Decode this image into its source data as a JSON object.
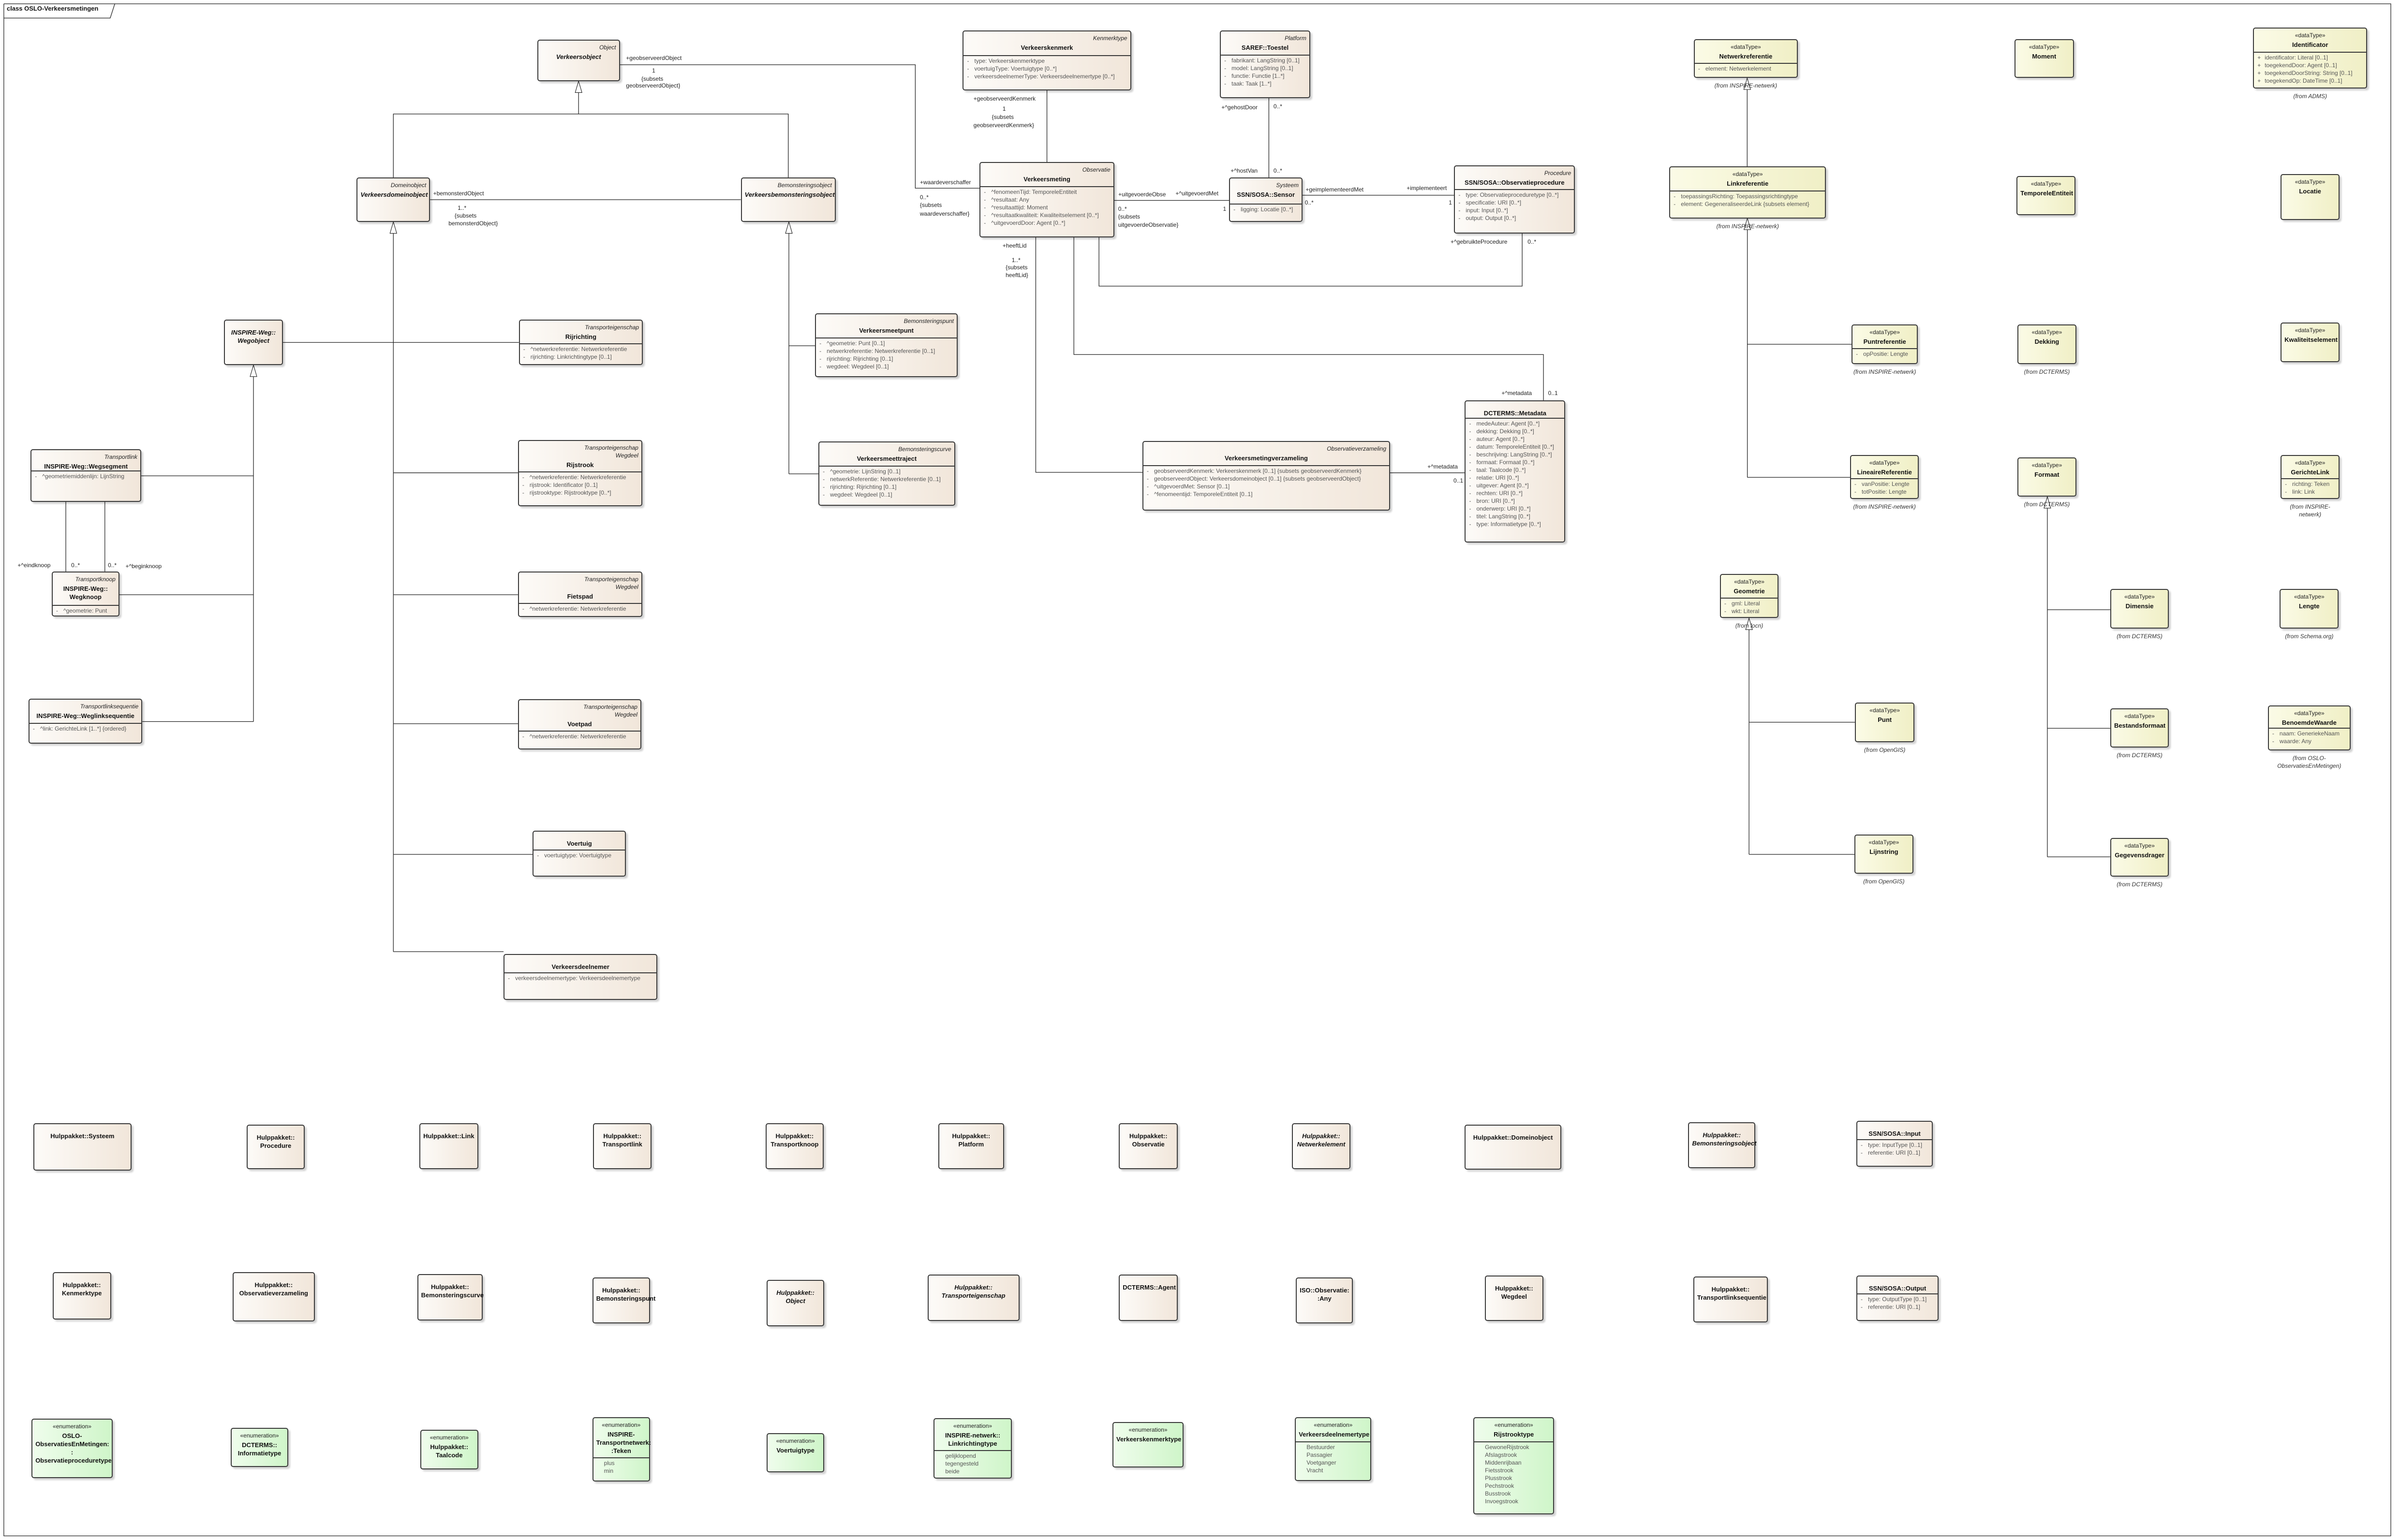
{
  "diagram": {
    "title": "class OSLO-Verkeersmetingen"
  },
  "colors": {
    "class_fill_start": "#fdfbf8",
    "class_fill_end": "#f1e6da",
    "datatype_fill_start": "#fbfbe6",
    "datatype_fill_end": "#f0efc6",
    "enumeration_fill_start": "#effdec",
    "enumeration_fill_end": "#cff5c9",
    "line": "#222222"
  },
  "classes": [
    {
      "kind": "class",
      "tags": [
        "Object"
      ],
      "name": "Verkeersobject",
      "abstract": true,
      "attributes": []
    },
    {
      "kind": "class",
      "tags": [
        "Domeinobject"
      ],
      "name": "Verkeersdomeinobject",
      "abstract": true,
      "attributes": []
    },
    {
      "kind": "class",
      "tags": [
        "Bemonsteringsobject"
      ],
      "name": "Verkeersbemonsteringsobject",
      "abstract": true,
      "attributes": []
    },
    {
      "kind": "class",
      "tags": [
        "Kenmerktype"
      ],
      "name": "Verkeerskenmerk",
      "attributes": [
        {
          "vis": "-",
          "text": "type: Verkeerskenmerktype"
        },
        {
          "vis": "-",
          "text": "voertuigType: Voertuigtype [0..*]"
        },
        {
          "vis": "-",
          "text": "verkeersdeelnemerType: Verkeersdeelnemertype [0..*]"
        }
      ]
    },
    {
      "kind": "class",
      "tags": [
        "Platform"
      ],
      "name": "SAREF::Toestel",
      "attributes": [
        {
          "vis": "-",
          "text": "fabrikant: LangString [0..1]"
        },
        {
          "vis": "-",
          "text": "model: LangString [0..1]"
        },
        {
          "vis": "-",
          "text": "functie: Functie [1..*]"
        },
        {
          "vis": "-",
          "text": "taak: Taak [1..*]"
        }
      ]
    },
    {
      "kind": "class",
      "tags": [
        "Observatie"
      ],
      "name": "Verkeersmeting",
      "attributes": [
        {
          "vis": "-",
          "text": "^fenomeenTijd: TemporeleEntiteit"
        },
        {
          "vis": "-",
          "text": "^resultaat: Any"
        },
        {
          "vis": "-",
          "text": "^resultaattijd: Moment"
        },
        {
          "vis": "-",
          "text": "^resultaatkwaliteit: Kwaliteitselement [0..*]"
        },
        {
          "vis": "-",
          "text": "^uitgevoerdDoor: Agent [0..*]"
        }
      ]
    },
    {
      "kind": "class",
      "tags": [
        "Systeem"
      ],
      "name": "SSN/SOSA::Sensor",
      "attributes": [
        {
          "vis": "-",
          "text": "ligging: Locatie [0..*]"
        }
      ]
    },
    {
      "kind": "class",
      "tags": [
        "Procedure"
      ],
      "name": "SSN/SOSA::Observatieprocedure",
      "attributes": [
        {
          "vis": "-",
          "text": "type: Observatieproceduretype [0..*]"
        },
        {
          "vis": "-",
          "text": "specificatie: URI [0..*]"
        },
        {
          "vis": "-",
          "text": "input: Input [0..*]"
        },
        {
          "vis": "-",
          "text": "output: Output [0..*]"
        }
      ]
    },
    {
      "kind": "class",
      "tags": [],
      "name": "DCTERMS::Metadata",
      "attributes": [
        {
          "vis": "-",
          "text": "medeAuteur: Agent [0..*]"
        },
        {
          "vis": "-",
          "text": "dekking: Dekking [0..*]"
        },
        {
          "vis": "-",
          "text": "auteur: Agent [0..*]"
        },
        {
          "vis": "-",
          "text": "datum: TemporeleEntiteit [0..*]"
        },
        {
          "vis": "-",
          "text": "beschrijving: LangString [0..*]"
        },
        {
          "vis": "-",
          "text": "formaat: Formaat [0..*]"
        },
        {
          "vis": "-",
          "text": "taal: Taalcode [0..*]"
        },
        {
          "vis": "-",
          "text": "relatie: URI [0..*]"
        },
        {
          "vis": "-",
          "text": "uitgever: Agent [0..*]"
        },
        {
          "vis": "-",
          "text": "rechten: URI [0..*]"
        },
        {
          "vis": "-",
          "text": "bron: URI [0..*]"
        },
        {
          "vis": "-",
          "text": "onderwerp: URI [0..*]"
        },
        {
          "vis": "-",
          "text": "titel: LangString [0..*]"
        },
        {
          "vis": "-",
          "text": "type: Informatietype [0..*]"
        }
      ]
    },
    {
      "kind": "class",
      "tags": [
        "Observatieverzameling"
      ],
      "name": "Verkeersmetingverzameling",
      "attributes": [
        {
          "vis": "-",
          "text": "geobserveerdKenmerk: Verkeerskenmerk [0..1] {subsets geobserveerdKenmerk}"
        },
        {
          "vis": "-",
          "text": "geobserveerdObject: Verkeersdomeinobject [0..1] {subsets geobserveerdObject}"
        },
        {
          "vis": "-",
          "text": "^uitgevoerdMet: Sensor [0..1]"
        },
        {
          "vis": "-",
          "text": "^fenomeentijd: TemporeleEntiteit [0..1]"
        }
      ]
    },
    {
      "kind": "class",
      "tags": [],
      "name": "INSPIRE-Weg::\nWegobject",
      "abstract": true,
      "attributes": []
    },
    {
      "kind": "class",
      "tags": [
        "Transporteigenschap"
      ],
      "name": "Rijrichting",
      "attributes": [
        {
          "vis": "-",
          "text": "^netwerkreferentie: Netwerkreferentie"
        },
        {
          "vis": "-",
          "text": "rijrichting: Linkrichtingtype [0..1]"
        }
      ]
    },
    {
      "kind": "class",
      "tags": [
        "Transporteigenschap",
        "Wegdeel"
      ],
      "name": "Rijstrook",
      "attributes": [
        {
          "vis": "-",
          "text": "^netwerkreferentie: Netwerkreferentie"
        },
        {
          "vis": "-",
          "text": "rijstrook: Identificator [0..1]"
        },
        {
          "vis": "-",
          "text": "rijstrooktype: Rijstrooktype [0..*]"
        }
      ]
    },
    {
      "kind": "class",
      "tags": [
        "Transporteigenschap",
        "Wegdeel"
      ],
      "name": "Fietspad",
      "attributes": [
        {
          "vis": "-",
          "text": "^netwerkreferentie: Netwerkreferentie"
        }
      ]
    },
    {
      "kind": "class",
      "tags": [
        "Transporteigenschap",
        "Wegdeel"
      ],
      "name": "Voetpad",
      "attributes": [
        {
          "vis": "-",
          "text": "^netwerkreferentie: Netwerkreferentie"
        }
      ]
    },
    {
      "kind": "class",
      "tags": [],
      "name": "Voertuig",
      "attributes": [
        {
          "vis": "-",
          "text": "voertuigtype: Voertuigtype"
        }
      ]
    },
    {
      "kind": "class",
      "tags": [],
      "name": "Verkeersdeelnemer",
      "attributes": [
        {
          "vis": "-",
          "text": "verkeersdeelnemertype: Verkeersdeelnemertype"
        }
      ]
    },
    {
      "kind": "class",
      "tags": [
        "Transportlink"
      ],
      "name": "INSPIRE-Weg::Wegsegment",
      "attributes": [
        {
          "vis": "-",
          "text": "^geometriemiddenlijn: LijnString"
        }
      ]
    },
    {
      "kind": "class",
      "tags": [
        "Transportknoop"
      ],
      "name": "INSPIRE-Weg::\nWegknoop",
      "attributes": [
        {
          "vis": "-",
          "text": "^geometrie: Punt"
        }
      ]
    },
    {
      "kind": "class",
      "tags": [
        "Transportlinksequentie"
      ],
      "name": "INSPIRE-Weg::Weglinksequentie",
      "attributes": [
        {
          "vis": "-",
          "text": "^link: GerichteLink [1..*] {ordered}"
        }
      ]
    },
    {
      "kind": "class",
      "tags": [
        "Bemonsteringspunt"
      ],
      "name": "Verkeersmeetpunt",
      "attributes": [
        {
          "vis": "-",
          "text": "^geometrie: Punt [0..1]"
        },
        {
          "vis": "-",
          "text": "netwerkreferentie: Netwerkreferentie [0..1]"
        },
        {
          "vis": "-",
          "text": "rijrichting: Rijrichting [0..1]"
        },
        {
          "vis": "-",
          "text": "wegdeel: Wegdeel [0..1]"
        }
      ]
    },
    {
      "kind": "class",
      "tags": [
        "Bemonsteringscurve"
      ],
      "name": "Verkeersmeettraject",
      "attributes": [
        {
          "vis": "-",
          "text": "^geometrie: LijnString [0..1]"
        },
        {
          "vis": "-",
          "text": "netwerkReferentie: Netwerkreferentie [0..1]"
        },
        {
          "vis": "-",
          "text": "rijrichting: Rijrichting [0..1]"
        },
        {
          "vis": "-",
          "text": "wegdeel: Wegdeel [0..1]"
        }
      ]
    },
    {
      "kind": "dataType",
      "stereotype": "«dataType»",
      "name": "Netwerkreferentie",
      "attributes": [
        {
          "vis": "-",
          "text": "element: Netwerkelement"
        }
      ],
      "from": "(from INSPIRE-netwerk)"
    },
    {
      "kind": "dataType",
      "stereotype": "«dataType»",
      "name": "Moment",
      "attributes": []
    },
    {
      "kind": "dataType",
      "stereotype": "«dataType»",
      "name": "Identificator",
      "attributes": [
        {
          "vis": "+",
          "text": "identificator: Literal [0..1]"
        },
        {
          "vis": "+",
          "text": "toegekendDoor: Agent [0..1]"
        },
        {
          "vis": "+",
          "text": "toegekendDoorString: String [0..1]"
        },
        {
          "vis": "+",
          "text": "toegekendOp: DateTime [0..1]"
        }
      ],
      "from": "(from ADMS)"
    },
    {
      "kind": "dataType",
      "stereotype": "«dataType»",
      "name": "Linkreferentie",
      "attributes": [
        {
          "vis": "-",
          "text": "toepassingsRichting: Toepassingsrichtingtype"
        },
        {
          "vis": "-",
          "text": "element: GegeneraliseerdeLink {subsets element}"
        }
      ],
      "from": "(from INSPIRE-netwerk)"
    },
    {
      "kind": "dataType",
      "stereotype": "«dataType»",
      "name": "TemporeleEntiteit",
      "attributes": []
    },
    {
      "kind": "dataType",
      "stereotype": "«dataType»",
      "name": "Locatie",
      "attributes": []
    },
    {
      "kind": "dataType",
      "stereotype": "«dataType»",
      "name": "Puntreferentie",
      "attributes": [
        {
          "vis": "-",
          "text": "opPositie: Lengte"
        }
      ],
      "from": "(from INSPIRE-netwerk)"
    },
    {
      "kind": "dataType",
      "stereotype": "«dataType»",
      "name": "Dekking",
      "attributes": [],
      "from": "(from DCTERMS)"
    },
    {
      "kind": "dataType",
      "stereotype": "«dataType»",
      "name": "Kwaliteitselement",
      "attributes": []
    },
    {
      "kind": "dataType",
      "stereotype": "«dataType»",
      "name": "LineaireReferentie",
      "attributes": [
        {
          "vis": "-",
          "text": "vanPositie: Lengte"
        },
        {
          "vis": "-",
          "text": "totPositie: Lengte"
        }
      ],
      "from": "(from INSPIRE-netwerk)"
    },
    {
      "kind": "dataType",
      "stereotype": "«dataType»",
      "name": "Formaat",
      "attributes": [],
      "from": "(from DCTERMS)"
    },
    {
      "kind": "dataType",
      "stereotype": "«dataType»",
      "name": "GerichteLink",
      "attributes": [
        {
          "vis": "-",
          "text": "richting: Teken"
        },
        {
          "vis": "-",
          "text": "link: Link"
        }
      ],
      "from": "(from INSPIRE-\nnetwerk)"
    },
    {
      "kind": "dataType",
      "stereotype": "«dataType»",
      "name": "Geometrie",
      "attributes": [
        {
          "vis": "-",
          "text": "gml: Literal"
        },
        {
          "vis": "-",
          "text": "wkt: Literal"
        }
      ],
      "from": "(from locn)"
    },
    {
      "kind": "dataType",
      "stereotype": "«dataType»",
      "name": "Dimensie",
      "attributes": [],
      "from": "(from DCTERMS)"
    },
    {
      "kind": "dataType",
      "stereotype": "«dataType»",
      "name": "Lengte",
      "attributes": [],
      "from": "(from Schema.org)"
    },
    {
      "kind": "dataType",
      "stereotype": "«dataType»",
      "name": "Punt",
      "attributes": [],
      "from": "(from OpenGIS)"
    },
    {
      "kind": "dataType",
      "stereotype": "«dataType»",
      "name": "Bestandsformaat",
      "attributes": [],
      "from": "(from DCTERMS)"
    },
    {
      "kind": "dataType",
      "stereotype": "«dataType»",
      "name": "BenoemdeWaarde",
      "attributes": [
        {
          "vis": "-",
          "text": "naam: GeneriekeNaam"
        },
        {
          "vis": "-",
          "text": "waarde: Any"
        }
      ],
      "from": "(from OSLO-\nObservatiesEnMetingen)"
    },
    {
      "kind": "dataType",
      "stereotype": "«dataType»",
      "name": "Lijnstring",
      "attributes": [],
      "from": "(from OpenGIS)"
    },
    {
      "kind": "dataType",
      "stereotype": "«dataType»",
      "name": "Gegevensdrager",
      "attributes": [],
      "from": "(from DCTERMS)"
    },
    {
      "kind": "class",
      "name": "Hulppakket::Systeem",
      "attributes": []
    },
    {
      "kind": "class",
      "name": "Hulppakket::\nProcedure",
      "attributes": []
    },
    {
      "kind": "class",
      "name": "Hulppakket::Link",
      "attributes": []
    },
    {
      "kind": "class",
      "name": "Hulppakket::\nTransportlink",
      "attributes": []
    },
    {
      "kind": "class",
      "name": "Hulppakket::\nTransportknoop",
      "attributes": []
    },
    {
      "kind": "class",
      "name": "Hulppakket::\nPlatform",
      "attributes": []
    },
    {
      "kind": "class",
      "name": "Hulppakket::\nObservatie",
      "attributes": []
    },
    {
      "kind": "class",
      "name": "Hulppakket::\nNetwerkelement",
      "abstract": true,
      "attributes": []
    },
    {
      "kind": "class",
      "name": "Hulppakket::Domeinobject",
      "attributes": []
    },
    {
      "kind": "class",
      "name": "Hulppakket::\nBemonsteringsobject",
      "abstract": true,
      "attributes": []
    },
    {
      "kind": "class",
      "name": "SSN/SOSA::Input",
      "attributes": [
        {
          "vis": "-",
          "text": "type: InputType [0..1]"
        },
        {
          "vis": "-",
          "text": "referentie: URI [0..1]"
        }
      ]
    },
    {
      "kind": "class",
      "name": "Hulppakket::\nKenmerktype",
      "attributes": []
    },
    {
      "kind": "class",
      "name": "Hulppakket::\nObservatieverzameling",
      "attributes": []
    },
    {
      "kind": "class",
      "name": "Hulppakket::\nBemonsteringscurve",
      "attributes": []
    },
    {
      "kind": "class",
      "name": "Hulppakket::\nBemonsteringspunt",
      "attributes": []
    },
    {
      "kind": "class",
      "name": "Hulppakket::\nObject",
      "abstract": true,
      "attributes": []
    },
    {
      "kind": "class",
      "name": "Hulppakket::\nTransporteigenschap",
      "abstract": true,
      "attributes": []
    },
    {
      "kind": "class",
      "name": "DCTERMS::Agent",
      "attributes": []
    },
    {
      "kind": "class",
      "name": "ISO::Observatie:\n:Any",
      "attributes": []
    },
    {
      "kind": "class",
      "name": "Hulppakket::\nWegdeel",
      "attributes": []
    },
    {
      "kind": "class",
      "name": "Hulppakket::\nTransportlinksequentie",
      "attributes": []
    },
    {
      "kind": "class",
      "name": "SSN/SOSA::Output",
      "attributes": [
        {
          "vis": "-",
          "text": "type: OutputType [0..1]"
        },
        {
          "vis": "-",
          "text": "referentie: URI [0..1]"
        }
      ]
    },
    {
      "kind": "enumeration",
      "stereotype": "«enumeration»",
      "name": "OSLO-\nObservatiesEnMetingen:\n:\nObservatieproceduretype",
      "attributes": []
    },
    {
      "kind": "enumeration",
      "stereotype": "«enumeration»",
      "name": "DCTERMS::\nInformatietype",
      "attributes": []
    },
    {
      "kind": "enumeration",
      "stereotype": "«enumeration»",
      "name": "Hulppakket::\nTaalcode",
      "attributes": []
    },
    {
      "kind": "enumeration",
      "stereotype": "«enumeration»",
      "name": "INSPIRE-\nTransportnetwerk:\n:Teken",
      "attributes": [
        {
          "vis": "",
          "text": "plus"
        },
        {
          "vis": "",
          "text": "min"
        }
      ]
    },
    {
      "kind": "enumeration",
      "stereotype": "«enumeration»",
      "name": "Voertuigtype",
      "attributes": []
    },
    {
      "kind": "enumeration",
      "stereotype": "«enumeration»",
      "name": "INSPIRE-netwerk::\nLinkrichtingtype",
      "attributes": [
        {
          "vis": "",
          "text": "gelijklopend"
        },
        {
          "vis": "",
          "text": "tegengesteld"
        },
        {
          "vis": "",
          "text": "beide"
        }
      ]
    },
    {
      "kind": "enumeration",
      "stereotype": "«enumeration»",
      "name": "Verkeerskenmerktype",
      "attributes": []
    },
    {
      "kind": "enumeration",
      "stereotype": "«enumeration»",
      "name": "Verkeersdeelnemertype",
      "attributes": [
        {
          "vis": "",
          "text": "Bestuurder"
        },
        {
          "vis": "",
          "text": "Passagier"
        },
        {
          "vis": "",
          "text": "Voetganger"
        },
        {
          "vis": "",
          "text": "Vracht"
        }
      ]
    },
    {
      "kind": "enumeration",
      "stereotype": "«enumeration»",
      "name": "Rijstrooktype",
      "attributes": [
        {
          "vis": "",
          "text": "GewoneRijstrook"
        },
        {
          "vis": "",
          "text": "Afslagstrook"
        },
        {
          "vis": "",
          "text": "Middenrijbaan"
        },
        {
          "vis": "",
          "text": "Fietsstrook"
        },
        {
          "vis": "",
          "text": "Plusstrook"
        },
        {
          "vis": "",
          "text": "Pechstrook"
        },
        {
          "vis": "",
          "text": "Busstrook"
        },
        {
          "vis": "",
          "text": "Invoegstrook"
        }
      ]
    }
  ],
  "connector_labels": [
    "+geobserveerdObject",
    "1",
    "{subsets",
    "geobserveerdObject}",
    "+bemonsterdObject",
    "1..*",
    "{subsets",
    "bemonsterdObject}",
    "+waardeverschaffer",
    "0..*",
    "{subsets",
    "waardeverschaffer}",
    "+geobserveerdKenmerk",
    "1",
    "{subsets",
    "geobserveerdKenmerk}",
    "+^gehostDoor",
    "0..*",
    "+^hostVan",
    "0..*",
    "+uitgevoerdeObse",
    "+^uitgevoerdMet",
    "0..*",
    "{subsets",
    "uitgevoerdeObservatie}",
    "1",
    "+geimplementeerdMet",
    "0..*",
    "+implementeert",
    "1",
    "+^gebruikteProcedure",
    "0..*",
    "+heeftLid",
    "1..*",
    "{subsets",
    "heeftLid}",
    "+^metadata",
    "0..1",
    "+^metadata",
    "0..1",
    "+^eindknoop",
    "0..*",
    "0..*",
    "+^beginknoop"
  ]
}
